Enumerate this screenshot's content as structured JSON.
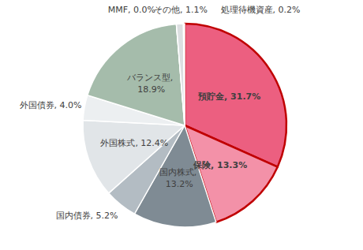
{
  "chart_data": {
    "type": "pie",
    "categories": [
      "預貯金",
      "保険",
      "国内株式",
      "国内債券",
      "外国株式",
      "外国債券",
      "バランス型",
      "MMF",
      "その他",
      "処理待機資産"
    ],
    "values": [
      31.7,
      13.3,
      13.2,
      5.2,
      12.4,
      4.0,
      18.9,
      0.0,
      1.1,
      0.2
    ],
    "value_labels": [
      "預貯金, 31.7%",
      "保険, 13.3%",
      "国内株式, 13.2%",
      "国内債券, 5.2%",
      "外国株式, 12.4%",
      "外国債券, 4.0%",
      "バランス型, 18.9%",
      "MMF, 0.0%",
      "その他, 1.1%",
      "処理待機資産, 0.2%"
    ],
    "colors": [
      "#ec5f80",
      "#f391a8",
      "#7f8b94",
      "#b3bcc3",
      "#e1e5e8",
      "#eceff1",
      "#a5bcab",
      "#d9dddf",
      "#dcdfe1",
      "#f2f2f2"
    ],
    "data_labels": true
  }
}
